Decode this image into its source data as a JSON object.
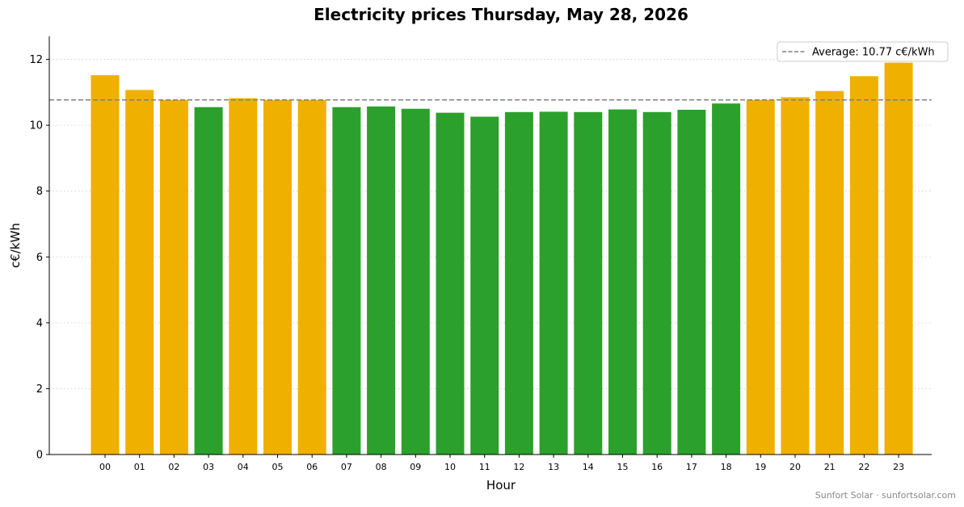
{
  "chart_data": {
    "type": "bar",
    "title": "Electricity prices Thursday, May 28, 2026",
    "xlabel": "Hour",
    "ylabel": "c€/kWh",
    "ylim": [
      0,
      12.7
    ],
    "yticks": [
      "0",
      "2",
      "4",
      "6",
      "8",
      "10",
      "12"
    ],
    "categories": [
      "00",
      "01",
      "02",
      "03",
      "04",
      "05",
      "06",
      "07",
      "08",
      "09",
      "10",
      "11",
      "12",
      "13",
      "14",
      "15",
      "16",
      "17",
      "18",
      "19",
      "20",
      "21",
      "22",
      "23"
    ],
    "values": [
      11.52,
      11.07,
      10.77,
      10.55,
      10.82,
      10.77,
      10.77,
      10.55,
      10.57,
      10.5,
      10.38,
      10.26,
      10.4,
      10.41,
      10.4,
      10.48,
      10.4,
      10.47,
      10.66,
      10.77,
      10.85,
      11.04,
      11.49,
      11.9
    ],
    "bar_colors": [
      "#f0b000",
      "#f0b000",
      "#f0b000",
      "#2ca02c",
      "#f0b000",
      "#f0b000",
      "#f0b000",
      "#2ca02c",
      "#2ca02c",
      "#2ca02c",
      "#2ca02c",
      "#2ca02c",
      "#2ca02c",
      "#2ca02c",
      "#2ca02c",
      "#2ca02c",
      "#2ca02c",
      "#2ca02c",
      "#2ca02c",
      "#f0b000",
      "#f0b000",
      "#f0b000",
      "#f0b000",
      "#f0b000"
    ],
    "average": 10.77,
    "average_label": "Average: 10.77 c€/kWh",
    "average_line_color": "#808080",
    "grid": "horizontal dotted",
    "legend_position": "top-right"
  },
  "footer": "Sunfort Solar · sunfortsolar.com"
}
